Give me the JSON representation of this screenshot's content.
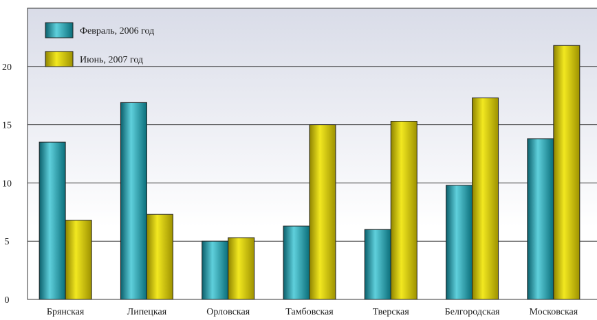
{
  "chart_data": {
    "type": "bar",
    "title": "",
    "xlabel": "",
    "ylabel": "",
    "categories": [
      "Брянская",
      "Липецкая",
      "Орловская",
      "Тамбовская",
      "Тверская",
      "Белгородская",
      "Московская"
    ],
    "series": [
      {
        "name": "Февраль, 2006 год",
        "values": [
          13.5,
          16.9,
          5.0,
          6.3,
          6.0,
          9.8,
          13.8
        ],
        "color": "#1a9aa6"
      },
      {
        "name": "Июнь, 2007 год",
        "values": [
          6.8,
          7.3,
          5.3,
          15.0,
          15.3,
          17.3,
          21.8
        ],
        "color": "#d6c800"
      }
    ],
    "ylim": [
      0,
      25
    ],
    "yticks": [
      0,
      5,
      10,
      15,
      20
    ],
    "grid": true,
    "legend_position": "top-left",
    "background_gradient": [
      "#d9dce8",
      "#ffffff"
    ]
  }
}
